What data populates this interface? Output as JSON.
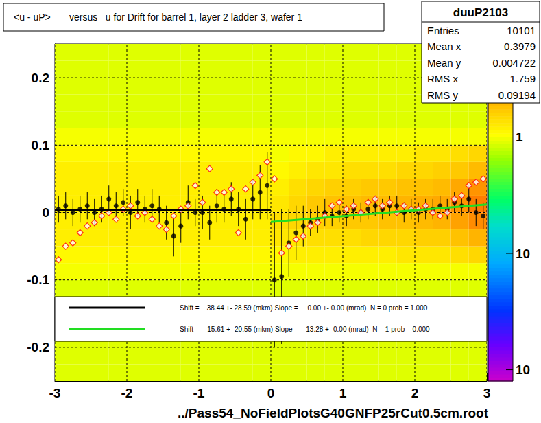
{
  "chart_data": {
    "type": "heatmap_profile",
    "title": "<u - uP>       versus   u for Drift for barrel 1, layer 2 ladder 3, wafer 1",
    "x_label": "../Pass54_NoFieldPlotsG40GNFP25rCut0.5cm.root",
    "xlim": [
      -3,
      3
    ],
    "xticks": [
      -3,
      -2,
      -1,
      0,
      1,
      2,
      3
    ],
    "ylim": [
      -0.25,
      0.25
    ],
    "yticks": [
      -0.2,
      -0.1,
      0,
      0.1,
      0.2
    ],
    "grid": true,
    "heatmap": {
      "log": true,
      "x_edges": [
        -3,
        -2.75,
        -2.5,
        -2.25,
        -2,
        -1.75,
        -1.5,
        -1.25,
        -1,
        -0.75,
        -0.5,
        -0.25,
        0,
        0.25,
        0.5,
        0.75,
        1,
        1.25,
        1.5,
        1.75,
        2,
        2.25,
        2.5,
        2.75,
        3
      ],
      "y_edges": [
        -0.25,
        -0.225,
        -0.2,
        -0.175,
        -0.15,
        -0.125,
        -0.1,
        -0.075,
        -0.05,
        -0.025,
        0,
        0.025,
        0.05,
        0.075,
        0.1,
        0.125,
        0.15,
        0.175,
        0.2,
        0.225,
        0.25
      ],
      "counts": [
        [
          0.9,
          0.9,
          0.9,
          0.9,
          0.9,
          0.9,
          0.9,
          0.9,
          0.9,
          0.9,
          0.9,
          0.9,
          0.9,
          0.9,
          0.9,
          0.9,
          0.9,
          0.9,
          0.9,
          0.9,
          0.9,
          0.9,
          0.9,
          0.9
        ],
        [
          0.9,
          0.9,
          0.9,
          0.9,
          0.9,
          0.9,
          0.9,
          0.9,
          0.9,
          0.9,
          0.9,
          0.9,
          0.9,
          0.9,
          0.9,
          0.9,
          0.9,
          0.9,
          0.9,
          0.9,
          0.9,
          0.9,
          0.9,
          0.9
        ],
        [
          0.9,
          0.9,
          0.9,
          0.9,
          0.9,
          0.9,
          0.9,
          0.9,
          0.9,
          0.9,
          0.9,
          0.9,
          0.9,
          0.9,
          0.9,
          0.9,
          0.9,
          0.9,
          0.9,
          0.9,
          0.9,
          0.9,
          0.9,
          0.9
        ],
        [
          0.9,
          0.9,
          0.9,
          0.9,
          0.9,
          0.9,
          0.9,
          0.9,
          0.9,
          0.9,
          0.9,
          0.9,
          0.9,
          0.9,
          0.9,
          0.9,
          0.9,
          0.9,
          0.9,
          0.9,
          0.9,
          0.9,
          0.9,
          0.9
        ],
        [
          0.9,
          0.9,
          0.9,
          0.9,
          0.9,
          0.9,
          0.9,
          0.9,
          0.9,
          0.9,
          0.9,
          0.9,
          0.9,
          0.9,
          0.9,
          0.9,
          0.9,
          0.9,
          0.9,
          0.9,
          0.9,
          0.9,
          0.9,
          0.9
        ],
        [
          0.9,
          0.9,
          0.9,
          0.9,
          0.9,
          0.9,
          0.9,
          0.9,
          0.9,
          0.9,
          0.9,
          0.9,
          0.9,
          0.9,
          0.9,
          0.9,
          0.9,
          0.9,
          0.9,
          0.9,
          0.9,
          0.9,
          0.9,
          0.9
        ],
        [
          1.0,
          1.0,
          1.0,
          1.0,
          1.0,
          1.0,
          1.0,
          1.0,
          1.0,
          1.0,
          1.0,
          1.0,
          1.0,
          1.0,
          1.0,
          1.0,
          1.0,
          1.0,
          1.0,
          1.0,
          1.0,
          1.0,
          1.0,
          1.0
        ],
        [
          1.1,
          1.1,
          1.1,
          1.1,
          1.1,
          1.1,
          1.1,
          1.1,
          1.1,
          1.1,
          1.1,
          1.1,
          1.1,
          1.2,
          1.2,
          1.2,
          1.2,
          1.2,
          1.2,
          1.3,
          1.3,
          1.3,
          1.4,
          1.5
        ],
        [
          1.2,
          1.2,
          1.2,
          1.2,
          1.2,
          1.2,
          1.2,
          1.2,
          1.2,
          1.2,
          1.2,
          1.2,
          1.3,
          1.3,
          1.4,
          1.4,
          1.4,
          1.5,
          1.5,
          1.5,
          1.6,
          1.6,
          1.8,
          2.0
        ],
        [
          1.2,
          1.2,
          1.2,
          1.2,
          1.2,
          1.2,
          1.2,
          1.2,
          1.2,
          1.2,
          1.2,
          1.2,
          1.4,
          1.5,
          1.6,
          1.6,
          1.7,
          1.7,
          1.8,
          1.8,
          1.9,
          2.0,
          2.3,
          2.8
        ],
        [
          1.2,
          1.2,
          1.2,
          1.2,
          1.2,
          1.2,
          1.2,
          1.2,
          1.2,
          1.2,
          1.2,
          1.2,
          1.3,
          1.5,
          1.7,
          1.8,
          1.8,
          1.9,
          1.9,
          2.0,
          2.1,
          2.2,
          2.6,
          3.2
        ],
        [
          1.2,
          1.2,
          1.2,
          1.2,
          1.2,
          1.2,
          1.2,
          1.2,
          1.2,
          1.2,
          1.2,
          1.2,
          1.2,
          1.4,
          1.5,
          1.6,
          1.6,
          1.7,
          1.7,
          1.8,
          1.8,
          1.9,
          2.2,
          2.6
        ],
        [
          1.2,
          1.2,
          1.2,
          1.2,
          1.2,
          1.2,
          1.2,
          1.2,
          1.2,
          1.2,
          1.2,
          1.2,
          1.1,
          1.2,
          1.3,
          1.3,
          1.4,
          1.4,
          1.4,
          1.5,
          1.5,
          1.6,
          1.7,
          1.9
        ],
        [
          1.1,
          1.1,
          1.1,
          1.1,
          1.1,
          1.1,
          1.1,
          1.1,
          1.1,
          1.1,
          1.1,
          1.1,
          1.0,
          1.1,
          1.1,
          1.2,
          1.2,
          1.2,
          1.2,
          1.2,
          1.3,
          1.3,
          1.4,
          1.5
        ],
        [
          1.0,
          1.0,
          1.0,
          1.0,
          1.0,
          1.0,
          1.0,
          1.0,
          1.0,
          1.0,
          1.0,
          1.0,
          1.0,
          1.0,
          1.0,
          1.0,
          1.0,
          1.0,
          1.0,
          1.0,
          1.0,
          1.0,
          1.0,
          1.0
        ],
        [
          0.9,
          0.9,
          0.9,
          0.9,
          0.9,
          0.9,
          0.9,
          0.9,
          0.9,
          0.9,
          0.9,
          0.9,
          0.9,
          0.9,
          0.9,
          0.9,
          0.9,
          0.9,
          0.9,
          0.9,
          0.9,
          0.9,
          0.9,
          0.9
        ],
        [
          0.9,
          0.9,
          0.9,
          0.9,
          0.9,
          0.9,
          0.9,
          0.9,
          0.9,
          0.9,
          0.9,
          0.9,
          0.9,
          0.9,
          0.9,
          0.9,
          0.9,
          0.9,
          0.9,
          0.9,
          0.9,
          0.9,
          0.9,
          0.9
        ],
        [
          0.9,
          0.9,
          0.9,
          0.9,
          0.9,
          0.9,
          0.9,
          0.9,
          0.9,
          0.9,
          0.9,
          0.9,
          0.9,
          0.9,
          0.9,
          0.9,
          0.9,
          0.9,
          0.9,
          0.9,
          0.9,
          0.9,
          0.9,
          0.9
        ],
        [
          0.9,
          0.9,
          0.9,
          0.9,
          0.9,
          0.9,
          0.9,
          0.9,
          0.9,
          0.9,
          0.9,
          0.9,
          0.9,
          0.9,
          0.9,
          0.9,
          0.9,
          0.9,
          0.9,
          0.9,
          0.9,
          0.9,
          0.9,
          0.9
        ],
        [
          0.9,
          0.9,
          0.9,
          0.9,
          0.9,
          0.9,
          0.9,
          0.9,
          0.9,
          0.9,
          0.9,
          0.9,
          0.9,
          0.9,
          0.9,
          0.9,
          0.9,
          0.9,
          0.9,
          0.9,
          0.9,
          0.9,
          0.9,
          0.9
        ]
      ],
      "color_range": [
        0.008,
        6.3
      ],
      "color_ticks": [
        {
          "value": 1,
          "label": "1"
        },
        {
          "value": 0.1,
          "label": "10"
        },
        {
          "value": 0.01,
          "label": "10"
        }
      ]
    },
    "series": [
      {
        "type": "scatter",
        "marker": "circle",
        "color": "#000000",
        "x": [
          -2.95,
          -2.85,
          -2.75,
          -2.65,
          -2.55,
          -2.45,
          -2.35,
          -2.25,
          -2.15,
          -2.05,
          -1.95,
          -1.85,
          -1.75,
          -1.65,
          -1.55,
          -1.45,
          -1.35,
          -1.25,
          -1.15,
          -1.05,
          -0.95,
          -0.85,
          -0.75,
          -0.65,
          -0.55,
          -0.45,
          -0.35,
          -0.25,
          -0.15,
          -0.05,
          0.05,
          0.15,
          0.25,
          0.35,
          0.45,
          0.55,
          0.65,
          0.75,
          0.85,
          0.95,
          1.05,
          1.15,
          1.25,
          1.35,
          1.45,
          1.55,
          1.65,
          1.75,
          1.85,
          1.95,
          2.05,
          2.15,
          2.25,
          2.35,
          2.45,
          2.55,
          2.65,
          2.75,
          2.85,
          2.95
        ],
        "values": [
          0.005,
          0.01,
          0.0,
          0.005,
          0.01,
          0.0,
          0.005,
          0.02,
          0.01,
          0.015,
          0.0,
          0.015,
          0.005,
          0.01,
          0.005,
          -0.015,
          -0.035,
          -0.02,
          0.015,
          0.0,
          0.0,
          -0.015,
          0.01,
          0.005,
          0.02,
          0.005,
          -0.01,
          0.02,
          0.03,
          0.04,
          -0.1,
          -0.095,
          -0.045,
          -0.03,
          -0.02,
          -0.015,
          -0.01,
          0.0,
          -0.005,
          0.0,
          -0.005,
          0.005,
          0.0,
          0.005,
          0.01,
          0.005,
          0.01,
          0.01,
          0.0,
          0.005,
          0.0,
          0.005,
          0.005,
          0.01,
          0.005,
          0.015,
          0.01,
          0.02,
          0.0,
          -0.005
        ],
        "errors": [
          0.02,
          0.02,
          0.02,
          0.02,
          0.02,
          0.02,
          0.02,
          0.02,
          0.02,
          0.02,
          0.025,
          0.02,
          0.02,
          0.025,
          0.02,
          0.025,
          0.03,
          0.025,
          0.025,
          0.02,
          0.025,
          0.025,
          0.025,
          0.02,
          0.025,
          0.025,
          0.03,
          0.03,
          0.04,
          0.05,
          0.1,
          0.1,
          0.05,
          0.04,
          0.03,
          0.02,
          0.02,
          0.02,
          0.015,
          0.015,
          0.015,
          0.015,
          0.015,
          0.015,
          0.015,
          0.015,
          0.015,
          0.015,
          0.015,
          0.015,
          0.015,
          0.015,
          0.015,
          0.015,
          0.015,
          0.015,
          0.015,
          0.02,
          0.02,
          0.02
        ]
      },
      {
        "type": "scatter",
        "marker": "open_diamond",
        "color": "#ff0000",
        "x": [
          -2.95,
          -2.85,
          -2.75,
          -2.65,
          -2.55,
          -2.45,
          -2.35,
          -2.25,
          -2.15,
          -2.05,
          -1.95,
          -1.85,
          -1.75,
          -1.65,
          -1.55,
          -1.45,
          -1.35,
          -1.25,
          -1.15,
          -1.05,
          -0.95,
          -0.85,
          -0.75,
          -0.65,
          -0.55,
          -0.45,
          -0.35,
          -0.25,
          -0.15,
          -0.05,
          0.05,
          0.15,
          0.25,
          0.35,
          0.45,
          0.55,
          0.65,
          0.75,
          0.85,
          0.95,
          1.05,
          1.15,
          1.25,
          1.35,
          1.45,
          1.55,
          1.65,
          1.75,
          1.85,
          1.95,
          2.05,
          2.15,
          2.25,
          2.35,
          2.45,
          2.55,
          2.65,
          2.75,
          2.85,
          2.95
        ],
        "values": [
          -0.07,
          -0.05,
          -0.045,
          -0.03,
          -0.02,
          -0.015,
          -0.005,
          0.0,
          -0.01,
          0.005,
          0.01,
          -0.005,
          0.0,
          -0.01,
          -0.02,
          -0.025,
          -0.005,
          0.005,
          0.01,
          0.04,
          0.015,
          0.065,
          0.03,
          0.03,
          0.035,
          -0.03,
          0.035,
          0.045,
          0.055,
          0.075,
          0.05,
          -0.06,
          -0.05,
          -0.04,
          -0.035,
          -0.02,
          -0.015,
          -0.005,
          0.01,
          0.015,
          0.005,
          0.01,
          0.0,
          0.015,
          0.02,
          0.01,
          0.015,
          0.0,
          0.01,
          0.005,
          0.005,
          0.01,
          0.0,
          -0.005,
          0.0,
          0.02,
          0.025,
          0.04,
          0.045,
          0.05
        ]
      },
      {
        "type": "line",
        "color": "#000000",
        "line_style": "solid",
        "label": "Shift =    38.44 +- 28.59 (mkm) Slope =     0.00 +- 0.00 (mrad)  N = 0 prob = 1.000",
        "x": [
          -3,
          0
        ],
        "values": [
          0.004,
          0.004
        ]
      },
      {
        "type": "line",
        "color": "#22dd22",
        "line_style": "solid",
        "label": "Shift =   -15.61 +- 20.55 (mkm) Slope =    13.28 +- 0.00 (mrad)  N = 1 prob = 0.000",
        "x": [
          0,
          3
        ],
        "values": [
          -0.014,
          0.012
        ]
      }
    ],
    "stats": {
      "title": "duuP2103",
      "rows": [
        {
          "label": "Entries",
          "value": 10101
        },
        {
          "label": "Mean x",
          "value": 0.3979
        },
        {
          "label": "Mean y",
          "value": 0.004722
        },
        {
          "label": "RMS x",
          "value": 1.759
        },
        {
          "label": "RMS y",
          "value": 0.09194
        }
      ]
    }
  }
}
